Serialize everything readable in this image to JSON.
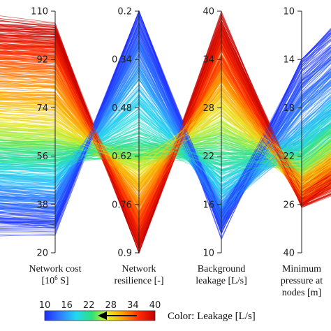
{
  "chart_data": {
    "type": "parallel_coordinates",
    "color_by": "Leakage",
    "axes": [
      {
        "id": "network-cost",
        "label_lines": [
          "Network cost",
          "[10^6 S]"
        ],
        "top": 110,
        "bottom": 20,
        "ticks": [
          110,
          92,
          74,
          56,
          38,
          20
        ],
        "tick_labels": [
          "110",
          "92",
          "74",
          "56",
          "38",
          "20"
        ]
      },
      {
        "id": "network-resilience",
        "label_lines": [
          "Network",
          "resilience [-]"
        ],
        "top": 0.2,
        "bottom": 0.9,
        "ticks": [
          0.2,
          0.34,
          0.48,
          0.62,
          0.76,
          0.9
        ],
        "tick_labels": [
          "0.2",
          "0.34",
          "0.48",
          "0.62",
          "0.76",
          "0.9"
        ]
      },
      {
        "id": "background-leakage",
        "label_lines": [
          "Background",
          "leakage [L/s]"
        ],
        "top": 40,
        "bottom": 10,
        "ticks": [
          40,
          34,
          28,
          22,
          16,
          10
        ],
        "tick_labels": [
          "40",
          "34",
          "28",
          "22",
          "16",
          "10"
        ]
      },
      {
        "id": "minimum-pressure",
        "label_lines": [
          "Minimum",
          "pressure at",
          "nodes [m]"
        ],
        "top": 10,
        "bottom": 40,
        "ticks": [
          10,
          14,
          18,
          22,
          26,
          40
        ],
        "tick_labels": [
          "10",
          "14",
          "18",
          "22",
          "26",
          "40"
        ]
      }
    ],
    "pareto_trend": {
      "leakage": [
        10,
        16,
        22,
        28,
        34,
        40
      ],
      "network_cost": [
        29,
        44,
        56,
        67,
        90,
        104
      ],
      "network_resilience": [
        0.2,
        0.38,
        0.6,
        0.66,
        0.8,
        0.9
      ],
      "background_leakage": [
        13,
        16,
        22,
        28,
        34,
        39
      ],
      "minimum_pressure": [
        14,
        20,
        22,
        24,
        25,
        26
      ]
    },
    "colorbar": {
      "min": 10,
      "max": 40,
      "ticks": [
        10,
        16,
        22,
        28,
        34,
        40
      ],
      "tick_labels": [
        "10",
        "16",
        "22",
        "28",
        "34",
        "40"
      ],
      "title": "Color: Leakage [L/s]",
      "colors": [
        "#1e2bff",
        "#2f7fff",
        "#22d8f0",
        "#2fe17a",
        "#e8f21e",
        "#ff9a00",
        "#ff2a00",
        "#c10000"
      ]
    }
  }
}
